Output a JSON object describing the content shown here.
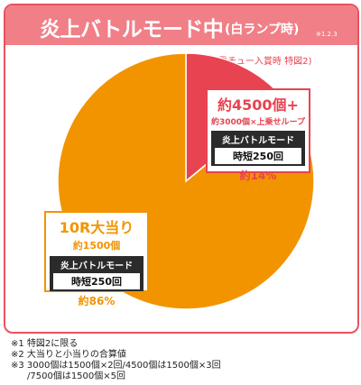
{
  "header": {
    "title": "炎上バトルモード中",
    "subtitle": "(白ランプ時)",
    "note_ref": "※1.2.3"
  },
  "condition": "(電チュー入賞時 特図2)",
  "chart_data": {
    "type": "pie",
    "slices": [
      {
        "value": 14,
        "color": "#e84350",
        "label_main": "約4500個+",
        "label_detail": "約3000個×上乗せループ",
        "mode_title": "炎上バトルモード",
        "mode_value": "時短250回",
        "percent_text": "約14%"
      },
      {
        "value": 86,
        "color": "#f29400",
        "label_main": "10R大当り",
        "label_detail": "約1500個",
        "mode_title": "炎上バトルモード",
        "mode_value": "時短250回",
        "percent_text": "約86%"
      }
    ]
  },
  "notes": [
    "※1 特図2に限る",
    "※2 大当りと小当りの合算値",
    "※3 3000個は1500個×2回/4500個は1500個×3回",
    "/7500個は1500個×5回"
  ]
}
